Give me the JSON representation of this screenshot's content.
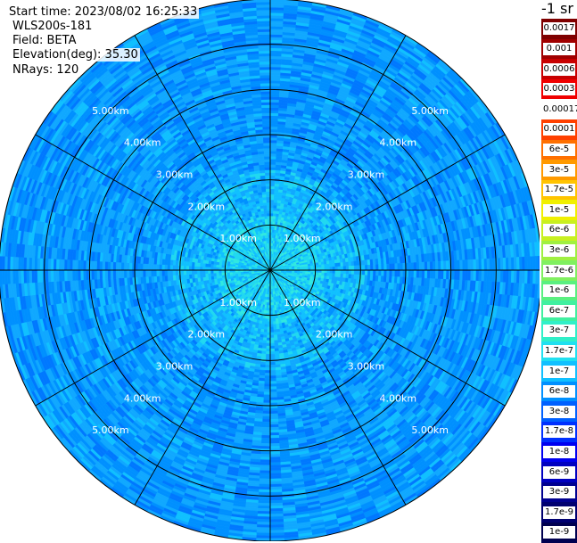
{
  "header": {
    "start_time": "Start time: 2023/08/02 16:25:33",
    "instrument": "WLS200s-181",
    "field": "Field: BETA",
    "elevation": "Elevation(deg): 35.30",
    "nrays": "NRays: 120"
  },
  "colorbar": {
    "unit": "-1 sr",
    "labels": [
      "0.0017",
      "0.001",
      "0.0006",
      "0.0003",
      "0.00017",
      "0.0001",
      "6e-5",
      "3e-5",
      "1.7e-5",
      "1e-5",
      "6e-6",
      "3e-6",
      "1.7e-6",
      "1e-6",
      "6e-7",
      "3e-7",
      "1.7e-7",
      "1e-7",
      "6e-8",
      "3e-8",
      "1.7e-8",
      "1e-8",
      "6e-9",
      "3e-9",
      "1.7e-9",
      "1e-9"
    ],
    "colors": [
      "#7f0000",
      "#a00000",
      "#c80000",
      "#f00000",
      "#ffffff",
      "#ff4000",
      "#ff7000",
      "#ff9a00",
      "#ffc400",
      "#f0f000",
      "#c8f020",
      "#a0f040",
      "#80f060",
      "#5af080",
      "#40f0a0",
      "#30f0c8",
      "#20e0f0",
      "#10c0ff",
      "#0090ff",
      "#0060ff",
      "#0030ff",
      "#0000f0",
      "#0000c0",
      "#000090",
      "#000070",
      "#000050"
    ]
  },
  "chart_data": {
    "type": "heatmap",
    "projection": "polar (PPI scan)",
    "field": "BETA",
    "elevation_deg": 35.3,
    "n_rays": 120,
    "max_range_km": 6.0,
    "range_rings_km": [
      1.0,
      2.0,
      3.0,
      4.0,
      5.0
    ],
    "ring_labels": [
      "1.00km",
      "2.00km",
      "3.00km",
      "4.00km",
      "5.00km"
    ],
    "azimuth_spokes_deg": [
      0,
      30,
      60,
      90,
      120,
      150,
      180,
      210,
      240,
      270,
      300,
      330
    ],
    "value_bands": [
      {
        "range_km": [
          0,
          1.2
        ],
        "typical_value": "1.7e-7",
        "color": "#20d8f0"
      },
      {
        "range_km": [
          1.2,
          2.2
        ],
        "typical_value": "1e-7",
        "color": "#10b8ff"
      },
      {
        "range_km": [
          2.2,
          6.0
        ],
        "typical_value": "6e-8",
        "color": "#0090ff"
      }
    ],
    "colormap_scale": "log"
  }
}
